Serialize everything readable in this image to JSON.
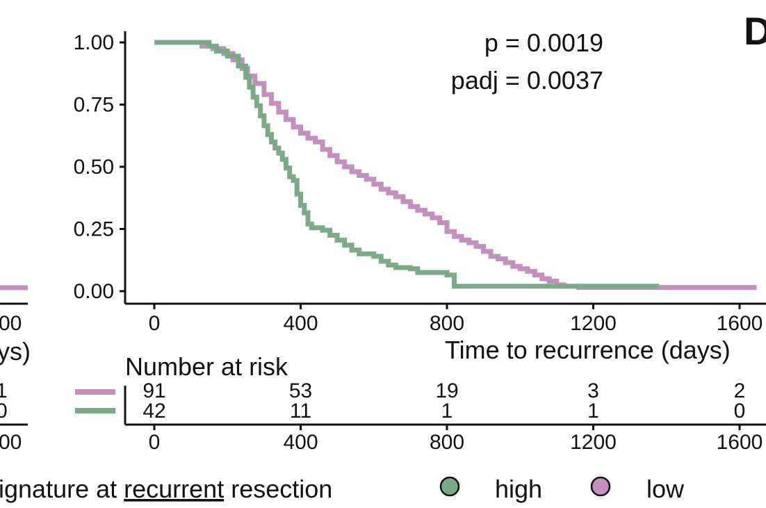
{
  "panel_letter": "D",
  "left_cutoff": {
    "tick_fragment": "00",
    "xlabel_fragment": "ys)",
    "risk_fragments": [
      "1",
      "0"
    ],
    "legend_fragment": "ignature at",
    "legend_underlined": "recurrent",
    "legend_suffix": "resection"
  },
  "chart_data": {
    "type": "line",
    "title": "",
    "xlabel": "Time to recurrence (days)",
    "ylabel": "",
    "xlim": [
      0,
      1640
    ],
    "ylim": [
      0,
      1
    ],
    "x_ticks": [
      0,
      400,
      800,
      1200,
      1600
    ],
    "x_tick_labels": [
      "0",
      "400",
      "800",
      "1200",
      "1600"
    ],
    "y_ticks": [
      0,
      0.25,
      0.5,
      0.75,
      1
    ],
    "y_tick_labels": [
      "0.00",
      "0.25",
      "0.50",
      "0.75",
      "1.00"
    ],
    "annotations": [
      "p = 0.0019",
      "padj = 0.0037"
    ],
    "series": [
      {
        "name": "low",
        "color": "#c48fbf",
        "points": [
          [
            0,
            1
          ],
          [
            100,
            1
          ],
          [
            130,
            0.985
          ],
          [
            160,
            0.975
          ],
          [
            190,
            0.955
          ],
          [
            215,
            0.93
          ],
          [
            240,
            0.895
          ],
          [
            255,
            0.865
          ],
          [
            275,
            0.835
          ],
          [
            300,
            0.79
          ],
          [
            320,
            0.755
          ],
          [
            340,
            0.72
          ],
          [
            360,
            0.69
          ],
          [
            380,
            0.66
          ],
          [
            400,
            0.635
          ],
          [
            420,
            0.615
          ],
          [
            440,
            0.6
          ],
          [
            460,
            0.57
          ],
          [
            480,
            0.545
          ],
          [
            500,
            0.52
          ],
          [
            520,
            0.5
          ],
          [
            540,
            0.48
          ],
          [
            560,
            0.465
          ],
          [
            580,
            0.45
          ],
          [
            600,
            0.43
          ],
          [
            620,
            0.41
          ],
          [
            640,
            0.395
          ],
          [
            660,
            0.38
          ],
          [
            680,
            0.36
          ],
          [
            700,
            0.34
          ],
          [
            720,
            0.325
          ],
          [
            740,
            0.31
          ],
          [
            760,
            0.295
          ],
          [
            780,
            0.275
          ],
          [
            800,
            0.24
          ],
          [
            820,
            0.22
          ],
          [
            840,
            0.205
          ],
          [
            860,
            0.195
          ],
          [
            880,
            0.18
          ],
          [
            900,
            0.16
          ],
          [
            920,
            0.14
          ],
          [
            940,
            0.13
          ],
          [
            960,
            0.115
          ],
          [
            980,
            0.1
          ],
          [
            1000,
            0.09
          ],
          [
            1020,
            0.08
          ],
          [
            1040,
            0.065
          ],
          [
            1060,
            0.05
          ],
          [
            1080,
            0.04
          ],
          [
            1100,
            0.025
          ],
          [
            1120,
            0.02
          ],
          [
            1160,
            0.015
          ],
          [
            1400,
            0.015
          ],
          [
            1620,
            0.015
          ],
          [
            1640,
            0.005
          ]
        ]
      },
      {
        "name": "high",
        "color": "#7aab86",
        "points": [
          [
            0,
            1
          ],
          [
            140,
            1
          ],
          [
            150,
            0.985
          ],
          [
            170,
            0.965
          ],
          [
            200,
            0.945
          ],
          [
            230,
            0.905
          ],
          [
            250,
            0.86
          ],
          [
            260,
            0.82
          ],
          [
            270,
            0.78
          ],
          [
            280,
            0.745
          ],
          [
            290,
            0.705
          ],
          [
            300,
            0.665
          ],
          [
            310,
            0.63
          ],
          [
            320,
            0.6
          ],
          [
            330,
            0.575
          ],
          [
            340,
            0.555
          ],
          [
            350,
            0.53
          ],
          [
            360,
            0.495
          ],
          [
            370,
            0.46
          ],
          [
            380,
            0.445
          ],
          [
            390,
            0.39
          ],
          [
            400,
            0.345
          ],
          [
            410,
            0.315
          ],
          [
            420,
            0.27
          ],
          [
            430,
            0.255
          ],
          [
            460,
            0.245
          ],
          [
            480,
            0.225
          ],
          [
            500,
            0.205
          ],
          [
            520,
            0.185
          ],
          [
            540,
            0.165
          ],
          [
            560,
            0.15
          ],
          [
            600,
            0.14
          ],
          [
            620,
            0.12
          ],
          [
            640,
            0.105
          ],
          [
            660,
            0.095
          ],
          [
            700,
            0.09
          ],
          [
            720,
            0.075
          ],
          [
            800,
            0.065
          ],
          [
            820,
            0.02
          ],
          [
            1000,
            0.02
          ],
          [
            1380,
            0.02
          ]
        ]
      }
    ]
  },
  "risk_table": {
    "title": "Number at risk",
    "ticks": [
      0,
      400,
      800,
      1200,
      1600
    ],
    "tick_labels": [
      "0",
      "400",
      "800",
      "1200",
      "1600"
    ],
    "rows": [
      {
        "name": "low",
        "color": "#c48fbf",
        "values": [
          "91",
          "53",
          "19",
          "3",
          "2"
        ]
      },
      {
        "name": "high",
        "color": "#7aab86",
        "values": [
          "42",
          "11",
          "1",
          "1",
          "0"
        ]
      }
    ]
  },
  "legend": {
    "items": [
      {
        "label": "high",
        "color": "#7aab86"
      },
      {
        "label": "low",
        "color": "#c48fbf"
      }
    ]
  }
}
